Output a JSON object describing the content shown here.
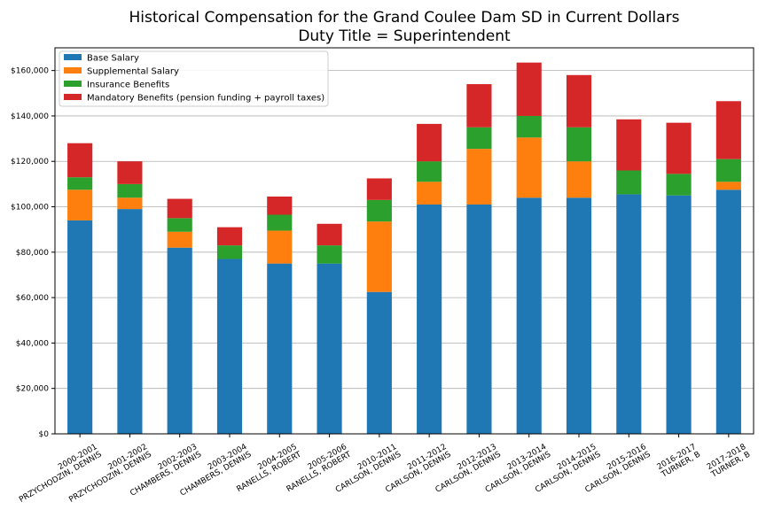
{
  "chart_data": {
    "type": "bar",
    "stacked": true,
    "title": "Historical Compensation for the Grand Coulee Dam SD in Current Dollars",
    "subtitle": "Duty Title = Superintendent",
    "xlabel": "",
    "ylabel": "",
    "ylim": [
      0,
      170000
    ],
    "yticks": [
      0,
      20000,
      40000,
      60000,
      80000,
      100000,
      120000,
      140000,
      160000
    ],
    "ytick_labels": [
      "$0",
      "$20,000",
      "$40,000",
      "$60,000",
      "$80,000",
      "$100,000",
      "$120,000",
      "$140,000",
      "$160,000"
    ],
    "grid": "horizontal",
    "legend_position": "top-left",
    "categories": [
      [
        "2000-2001",
        "PRZYCHODZIN, DENNIS"
      ],
      [
        "2001-2002",
        "PRZYCHODZIN, DENNIS"
      ],
      [
        "2002-2003",
        "CHAMBERS, DENNIS"
      ],
      [
        "2003-2004",
        "CHAMBERS, DENNIS"
      ],
      [
        "2004-2005",
        "RANELLS, ROBERT"
      ],
      [
        "2005-2006",
        "RANELLS, ROBERT"
      ],
      [
        "2010-2011",
        "CARLSON, DENNIS"
      ],
      [
        "2011-2012",
        "CARLSON, DENNIS"
      ],
      [
        "2012-2013",
        "CARLSON, DENNIS"
      ],
      [
        "2013-2014",
        "CARLSON, DENNIS"
      ],
      [
        "2014-2015",
        "CARLSON, DENNIS"
      ],
      [
        "2015-2016",
        "CARLSON, DENNIS"
      ],
      [
        "2016-2017",
        "TURNER, B"
      ],
      [
        "2017-2018",
        "TURNER, B"
      ]
    ],
    "series": [
      {
        "name": "Base Salary",
        "color": "#1f77b4",
        "values": [
          94000,
          99000,
          82000,
          77000,
          75000,
          75000,
          62500,
          101000,
          101000,
          104000,
          104000,
          105500,
          105000,
          107500
        ]
      },
      {
        "name": "Supplemental Salary",
        "color": "#ff7f0e",
        "values": [
          13500,
          5000,
          7000,
          0,
          14500,
          0,
          31000,
          10000,
          24500,
          26500,
          16000,
          0,
          0,
          3500
        ]
      },
      {
        "name": "Insurance Benefits",
        "color": "#2ca02c",
        "values": [
          5500,
          6000,
          6000,
          6000,
          7000,
          8000,
          9500,
          9000,
          9500,
          9500,
          15000,
          10500,
          9500,
          10000
        ]
      },
      {
        "name": "Mandatory Benefits (pension funding + payroll taxes)",
        "color": "#d62728",
        "values": [
          15000,
          10000,
          8500,
          8000,
          8000,
          9500,
          9500,
          16500,
          19000,
          23500,
          23000,
          22500,
          22500,
          25500
        ]
      }
    ]
  }
}
